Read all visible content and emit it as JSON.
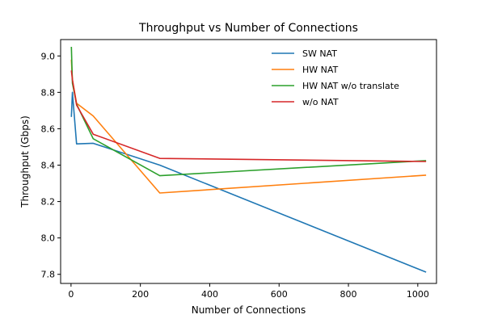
{
  "chart_data": {
    "type": "line",
    "title": "Throughput vs Number of Connections",
    "xlabel": "Number of Connections",
    "ylabel": "Throughput (Gbps)",
    "xlim": [
      -30,
      1054
    ],
    "ylim": [
      7.75,
      9.09
    ],
    "xticks": [
      0,
      200,
      400,
      600,
      800,
      1000
    ],
    "xtick_labels": [
      "0",
      "200",
      "400",
      "600",
      "800",
      "1000"
    ],
    "yticks": [
      7.8,
      8.0,
      8.2,
      8.4,
      8.6,
      8.8,
      9.0
    ],
    "ytick_labels": [
      "7.8",
      "8.0",
      "8.2",
      "8.4",
      "8.6",
      "8.8",
      "9.0"
    ],
    "grid": false,
    "legend_position": "top-right",
    "series": [
      {
        "name": "SW NAT",
        "color": "#1f77b4",
        "x": [
          1,
          4,
          16,
          64,
          256,
          1024
        ],
        "y": [
          8.665,
          8.8,
          8.517,
          8.52,
          8.4,
          7.812
        ]
      },
      {
        "name": "HW NAT",
        "color": "#ff7f0e",
        "x": [
          1,
          4,
          16,
          64,
          256,
          1024
        ],
        "y": [
          8.98,
          8.87,
          8.74,
          8.67,
          8.247,
          8.345
        ]
      },
      {
        "name": "HW NAT w/o translate",
        "color": "#2ca02c",
        "x": [
          1,
          4,
          16,
          64,
          256,
          1024
        ],
        "y": [
          9.05,
          8.85,
          8.735,
          8.545,
          8.342,
          8.425
        ]
      },
      {
        "name": "w/o NAT",
        "color": "#d62728",
        "x": [
          1,
          4,
          16,
          64,
          256,
          1024
        ],
        "y": [
          8.92,
          8.87,
          8.73,
          8.57,
          8.437,
          8.42
        ]
      }
    ]
  }
}
